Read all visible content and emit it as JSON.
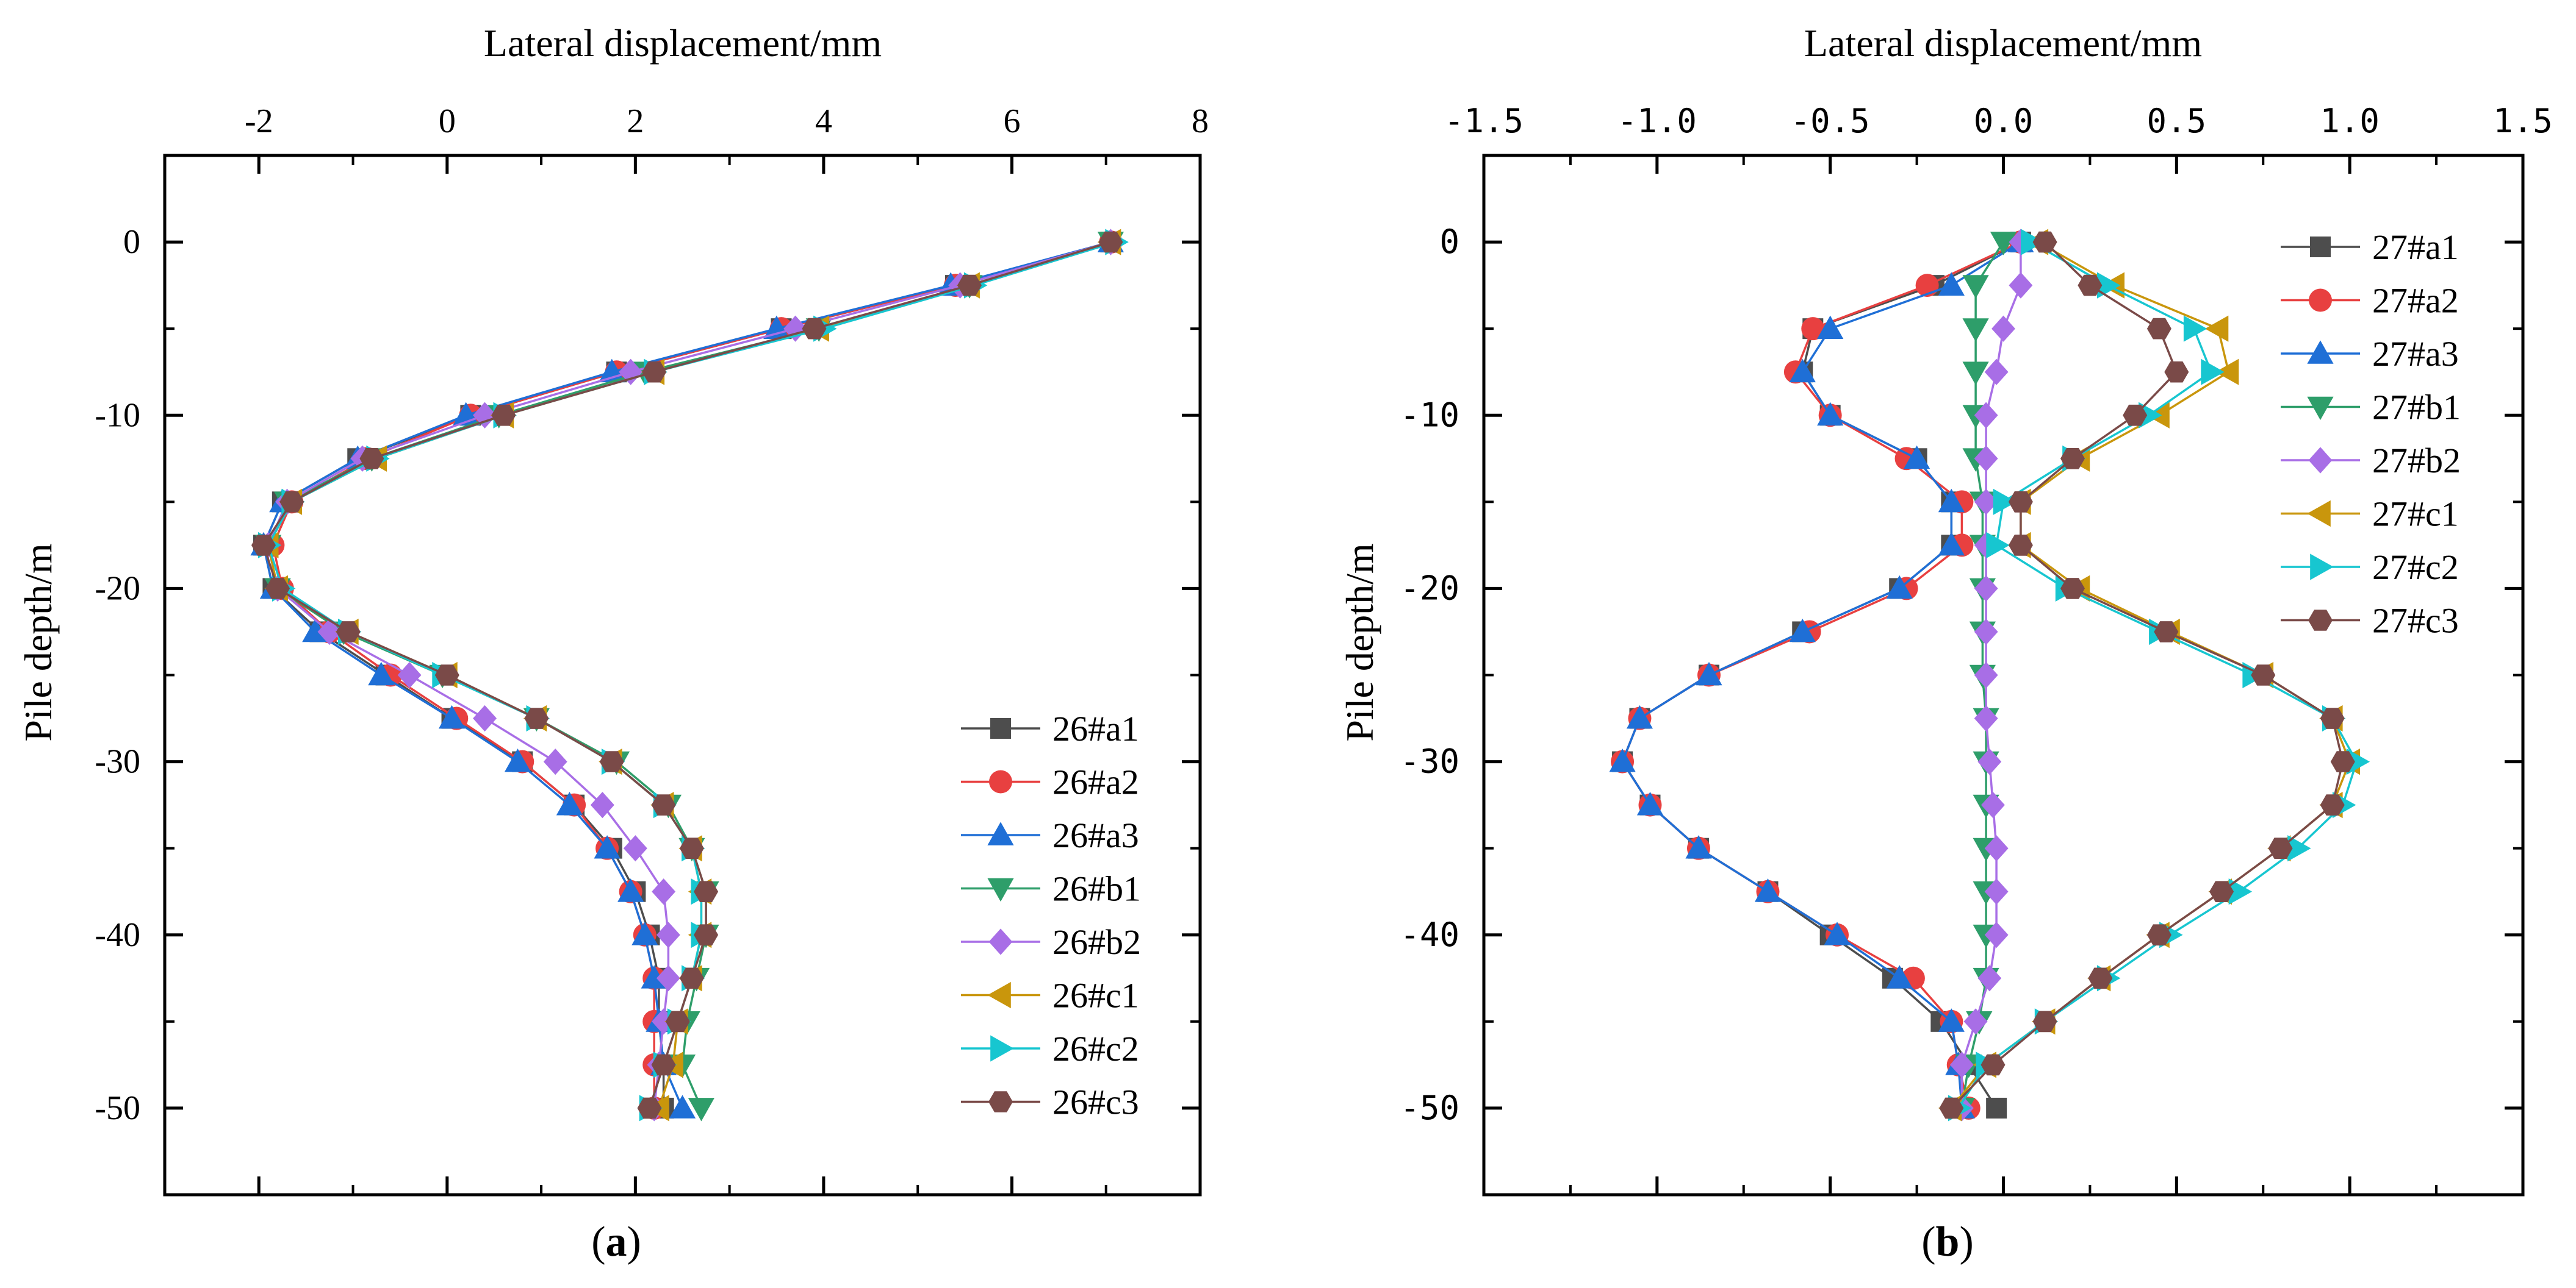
{
  "chart_data": [
    {
      "panel_label": "a",
      "type": "line",
      "xlabel": "Lateral displacement/mm",
      "ylabel": "Pile depth/m",
      "xlim": [
        -3,
        8
      ],
      "ylim": [
        -55,
        5
      ],
      "xticks": [
        -2,
        0,
        2,
        4,
        6,
        8
      ],
      "xtick_labels": [
        "-2",
        "0",
        "2",
        "4",
        "6",
        "8"
      ],
      "yticks": [
        0,
        -10,
        -20,
        -30,
        -40,
        -50
      ],
      "ytick_labels": [
        "0",
        "-10",
        "-20",
        "-30",
        "-40",
        "-50"
      ],
      "x_axis_position": "top",
      "legend_position": "bottom-right",
      "depth": [
        0,
        -2.5,
        -5,
        -7.5,
        -10,
        -12.5,
        -15,
        -17.5,
        -20,
        -22.5,
        -25,
        -27.5,
        -30,
        -32.5,
        -35,
        -37.5,
        -40,
        -42.5,
        -45,
        -47.5,
        -50
      ],
      "series": [
        {
          "name": "26#a1",
          "color": "#4d4d4d",
          "marker": "square",
          "values": [
            7.05,
            5.4,
            3.55,
            1.8,
            0.25,
            -0.95,
            -1.75,
            -1.95,
            -1.85,
            -1.35,
            -0.65,
            0.05,
            0.8,
            1.35,
            1.75,
            2.0,
            2.15,
            2.25,
            2.25,
            2.3,
            2.3
          ]
        },
        {
          "name": "26#a2",
          "color": "#e84040",
          "marker": "circle",
          "values": [
            7.05,
            5.4,
            3.55,
            1.8,
            0.25,
            -0.85,
            -1.65,
            -1.85,
            -1.75,
            -1.25,
            -0.6,
            0.1,
            0.8,
            1.35,
            1.7,
            1.95,
            2.1,
            2.2,
            2.2,
            2.2,
            2.2
          ]
        },
        {
          "name": "26#a3",
          "color": "#1f6fd6",
          "marker": "triangle-up",
          "values": [
            7.05,
            5.35,
            3.5,
            1.75,
            0.2,
            -0.95,
            -1.75,
            -1.95,
            -1.85,
            -1.4,
            -0.7,
            0.05,
            0.75,
            1.3,
            1.7,
            1.95,
            2.1,
            2.2,
            2.25,
            2.3,
            2.5
          ]
        },
        {
          "name": "26#b1",
          "color": "#2e9e6a",
          "marker": "triangle-down",
          "values": [
            7.05,
            5.55,
            3.95,
            2.1,
            0.55,
            -0.8,
            -1.7,
            -1.9,
            -1.8,
            -1.1,
            -0.05,
            0.95,
            1.8,
            2.35,
            2.6,
            2.75,
            2.75,
            2.65,
            2.55,
            2.5,
            2.7
          ]
        },
        {
          "name": "26#b2",
          "color": "#a86ee6",
          "marker": "diamond",
          "values": [
            7.05,
            5.45,
            3.7,
            1.95,
            0.4,
            -0.9,
            -1.7,
            -1.9,
            -1.8,
            -1.25,
            -0.4,
            0.4,
            1.15,
            1.65,
            2.0,
            2.3,
            2.35,
            2.35,
            2.3,
            2.25,
            2.2
          ]
        },
        {
          "name": "26#c1",
          "color": "#c9960c",
          "marker": "triangle-left",
          "values": [
            7.05,
            5.55,
            3.95,
            2.2,
            0.6,
            -0.75,
            -1.65,
            -1.9,
            -1.8,
            -1.05,
            0.0,
            0.95,
            1.75,
            2.3,
            2.6,
            2.7,
            2.7,
            2.6,
            2.45,
            2.4,
            2.25
          ]
        },
        {
          "name": "26#c2",
          "color": "#17c6d0",
          "marker": "triangle-right",
          "values": [
            7.1,
            5.6,
            4.0,
            2.2,
            0.6,
            -0.75,
            -1.65,
            -1.9,
            -1.75,
            -1.05,
            -0.05,
            0.95,
            1.75,
            2.3,
            2.6,
            2.7,
            2.7,
            2.6,
            2.45,
            2.3,
            2.15
          ]
        },
        {
          "name": "26#c3",
          "color": "#7a4a48",
          "marker": "hexagon",
          "values": [
            7.05,
            5.55,
            3.9,
            2.2,
            0.6,
            -0.8,
            -1.65,
            -1.95,
            -1.8,
            -1.05,
            0.0,
            0.95,
            1.75,
            2.3,
            2.6,
            2.75,
            2.75,
            2.6,
            2.45,
            2.3,
            2.15
          ]
        }
      ]
    },
    {
      "panel_label": "b",
      "type": "line",
      "xlabel": "Lateral displacement/mm",
      "ylabel": "Pile depth/m",
      "xlim": [
        -1.5,
        1.5
      ],
      "ylim": [
        -55,
        5
      ],
      "xticks": [
        -1.5,
        -1.0,
        -0.5,
        0.0,
        0.5,
        1.0,
        1.5
      ],
      "xtick_labels": [
        "-1.5",
        "-1.0",
        "-0.5",
        "0.0",
        "0.5",
        "1.0",
        "1.5"
      ],
      "yticks": [
        0,
        -10,
        -20,
        -30,
        -40,
        -50
      ],
      "ytick_labels": [
        "0",
        "-10",
        "-20",
        "-30",
        "-40",
        "-50"
      ],
      "x_axis_position": "top",
      "legend_position": "top-right",
      "depth": [
        0,
        -2.5,
        -5,
        -7.5,
        -10,
        -12.5,
        -15,
        -17.5,
        -20,
        -22.5,
        -25,
        -27.5,
        -30,
        -32.5,
        -35,
        -37.5,
        -40,
        -42.5,
        -45,
        -47.5,
        -50
      ],
      "series": [
        {
          "name": "27#a1",
          "color": "#4d4d4d",
          "marker": "square",
          "values": [
            0.05,
            -0.2,
            -0.55,
            -0.58,
            -0.5,
            -0.25,
            -0.15,
            -0.15,
            -0.3,
            -0.58,
            -0.85,
            -1.05,
            -1.1,
            -1.02,
            -0.88,
            -0.68,
            -0.5,
            -0.32,
            -0.18,
            -0.1,
            -0.02
          ]
        },
        {
          "name": "27#a2",
          "color": "#e84040",
          "marker": "circle",
          "values": [
            0.05,
            -0.22,
            -0.55,
            -0.6,
            -0.5,
            -0.28,
            -0.12,
            -0.12,
            -0.28,
            -0.56,
            -0.85,
            -1.05,
            -1.1,
            -1.02,
            -0.88,
            -0.68,
            -0.48,
            -0.26,
            -0.15,
            -0.13,
            -0.1
          ]
        },
        {
          "name": "27#a3",
          "color": "#1f6fd6",
          "marker": "triangle-up",
          "values": [
            0.05,
            -0.15,
            -0.5,
            -0.58,
            -0.5,
            -0.25,
            -0.15,
            -0.15,
            -0.3,
            -0.58,
            -0.85,
            -1.05,
            -1.1,
            -1.02,
            -0.88,
            -0.68,
            -0.48,
            -0.3,
            -0.15,
            -0.13,
            -0.12
          ]
        },
        {
          "name": "27#b1",
          "color": "#2e9e6a",
          "marker": "triangle-down",
          "values": [
            0.0,
            -0.08,
            -0.08,
            -0.08,
            -0.08,
            -0.08,
            -0.06,
            -0.06,
            -0.06,
            -0.06,
            -0.06,
            -0.05,
            -0.05,
            -0.05,
            -0.05,
            -0.05,
            -0.05,
            -0.05,
            -0.07,
            -0.1,
            -0.12
          ]
        },
        {
          "name": "27#b2",
          "color": "#a86ee6",
          "marker": "diamond",
          "values": [
            0.05,
            0.05,
            0.0,
            -0.02,
            -0.05,
            -0.05,
            -0.05,
            -0.05,
            -0.05,
            -0.05,
            -0.05,
            -0.05,
            -0.04,
            -0.03,
            -0.02,
            -0.02,
            -0.02,
            -0.04,
            -0.08,
            -0.12,
            -0.12
          ]
        },
        {
          "name": "27#c1",
          "color": "#c9960c",
          "marker": "triangle-left",
          "values": [
            0.1,
            0.32,
            0.62,
            0.65,
            0.45,
            0.22,
            0.05,
            0.05,
            0.22,
            0.48,
            0.75,
            0.95,
            1.0,
            0.95,
            0.8,
            0.63,
            0.45,
            0.28,
            0.12,
            -0.05,
            -0.15
          ]
        },
        {
          "name": "27#c2",
          "color": "#17c6d0",
          "marker": "triangle-right",
          "values": [
            0.08,
            0.3,
            0.55,
            0.6,
            0.42,
            0.2,
            0.0,
            -0.02,
            0.18,
            0.45,
            0.72,
            0.95,
            1.02,
            0.98,
            0.85,
            0.68,
            0.48,
            0.3,
            0.12,
            -0.05,
            -0.13
          ]
        },
        {
          "name": "27#c3",
          "color": "#7a4a48",
          "marker": "hexagon",
          "values": [
            0.12,
            0.25,
            0.45,
            0.5,
            0.38,
            0.2,
            0.05,
            0.05,
            0.2,
            0.47,
            0.75,
            0.95,
            0.98,
            0.95,
            0.8,
            0.63,
            0.45,
            0.28,
            0.12,
            -0.03,
            -0.15
          ]
        }
      ]
    }
  ]
}
